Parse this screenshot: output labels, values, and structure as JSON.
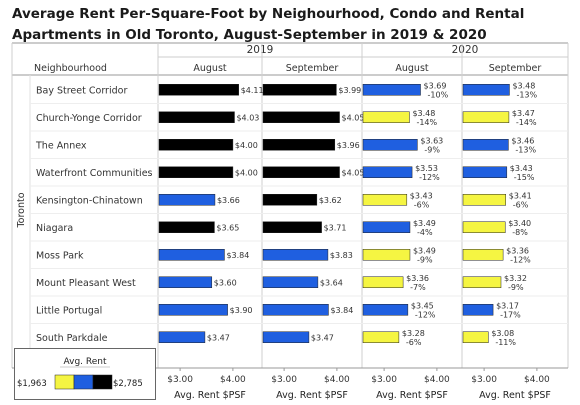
{
  "title": "Average Rent Per-Square-Foot by Neighourhood, Condo and Rental Apartments in Old Toronto, August-September in 2019 & 2020",
  "chart_data": {
    "type": "bar",
    "title": "Average Rent Per-Square-Foot by Neighourhood, Condo and Rental Apartments in Old Toronto, August-September in 2019 & 2020",
    "row_header": "Neighbourhood",
    "row_group_label": "Toronto",
    "year_labels": [
      "2019",
      "2020"
    ],
    "columns": [
      {
        "year": "2019",
        "month": "August"
      },
      {
        "year": "2019",
        "month": "September"
      },
      {
        "year": "2020",
        "month": "August"
      },
      {
        "year": "2020",
        "month": "September"
      }
    ],
    "categories": [
      "Bay Street Corridor",
      "Church-Yonge Corridor",
      "The Annex",
      "Waterfront Communities",
      "Kensington-Chinatown",
      "Niagara",
      "Moss Park",
      "Mount Pleasant West",
      "Little Portugal",
      "South Parkdale"
    ],
    "series": [
      {
        "values": [
          4.11,
          4.03,
          4.0,
          4.0,
          3.66,
          3.65,
          3.84,
          3.6,
          3.9,
          3.47
        ],
        "labels": [
          "$4.11",
          "$4.03",
          "$4.00",
          "$4.00",
          "$3.66",
          "$3.65",
          "$3.84",
          "$3.60",
          "$3.90",
          "$3.47"
        ],
        "changes": [
          "",
          "",
          "",
          "",
          "",
          "",
          "",
          "",
          "",
          ""
        ],
        "colors": [
          "#000000",
          "#000000",
          "#000000",
          "#000000",
          "#1f5fe0",
          "#000000",
          "#1f5fe0",
          "#1f5fe0",
          "#1f5fe0",
          "#1f5fe0"
        ]
      },
      {
        "values": [
          3.99,
          4.05,
          3.96,
          4.05,
          3.62,
          3.71,
          3.83,
          3.64,
          3.84,
          3.47
        ],
        "labels": [
          "$3.99",
          "$4.05",
          "$3.96",
          "$4.05",
          "$3.62",
          "$3.71",
          "$3.83",
          "$3.64",
          "$3.84",
          "$3.47"
        ],
        "changes": [
          "",
          "",
          "",
          "",
          "",
          "",
          "",
          "",
          "",
          ""
        ],
        "colors": [
          "#000000",
          "#000000",
          "#000000",
          "#000000",
          "#000000",
          "#000000",
          "#1f5fe0",
          "#1f5fe0",
          "#1f5fe0",
          "#1f5fe0"
        ]
      },
      {
        "values": [
          3.69,
          3.48,
          3.63,
          3.53,
          3.43,
          3.49,
          3.49,
          3.36,
          3.45,
          3.28
        ],
        "labels": [
          "$3.69",
          "$3.48",
          "$3.63",
          "$3.53",
          "$3.43",
          "$3.49",
          "$3.49",
          "$3.36",
          "$3.45",
          "$3.28"
        ],
        "changes": [
          "-10%",
          "-14%",
          "-9%",
          "-12%",
          "-6%",
          "-4%",
          "-9%",
          "-7%",
          "-12%",
          "-6%"
        ],
        "colors": [
          "#1f5fe0",
          "#f5f542",
          "#1f5fe0",
          "#1f5fe0",
          "#f5f542",
          "#1f5fe0",
          "#f5f542",
          "#f5f542",
          "#1f5fe0",
          "#f5f542"
        ]
      },
      {
        "values": [
          3.48,
          3.47,
          3.46,
          3.43,
          3.41,
          3.4,
          3.36,
          3.32,
          3.17,
          3.08
        ],
        "labels": [
          "$3.48",
          "$3.47",
          "$3.46",
          "$3.43",
          "$3.41",
          "$3.40",
          "$3.36",
          "$3.32",
          "$3.17",
          "$3.08"
        ],
        "changes": [
          "-13%",
          "-14%",
          "-13%",
          "-15%",
          "-6%",
          "-8%",
          "-12%",
          "-9%",
          "-17%",
          "-11%"
        ],
        "colors": [
          "#1f5fe0",
          "#f5f542",
          "#1f5fe0",
          "#1f5fe0",
          "#f5f542",
          "#f5f542",
          "#f5f542",
          "#f5f542",
          "#1f5fe0",
          "#f5f542"
        ]
      }
    ],
    "xlim": [
      2.6,
      4.4
    ],
    "x_ticks": [
      3.0,
      4.0
    ],
    "x_tick_labels": [
      "$3.00",
      "$4.00"
    ],
    "xlabel": "Avg. Rent $PSF",
    "legend": {
      "title": "Avg. Rent",
      "min_label": "$1,963",
      "max_label": "$2,785",
      "colors": [
        "#f5f542",
        "#1f5fe0",
        "#000000"
      ]
    }
  }
}
